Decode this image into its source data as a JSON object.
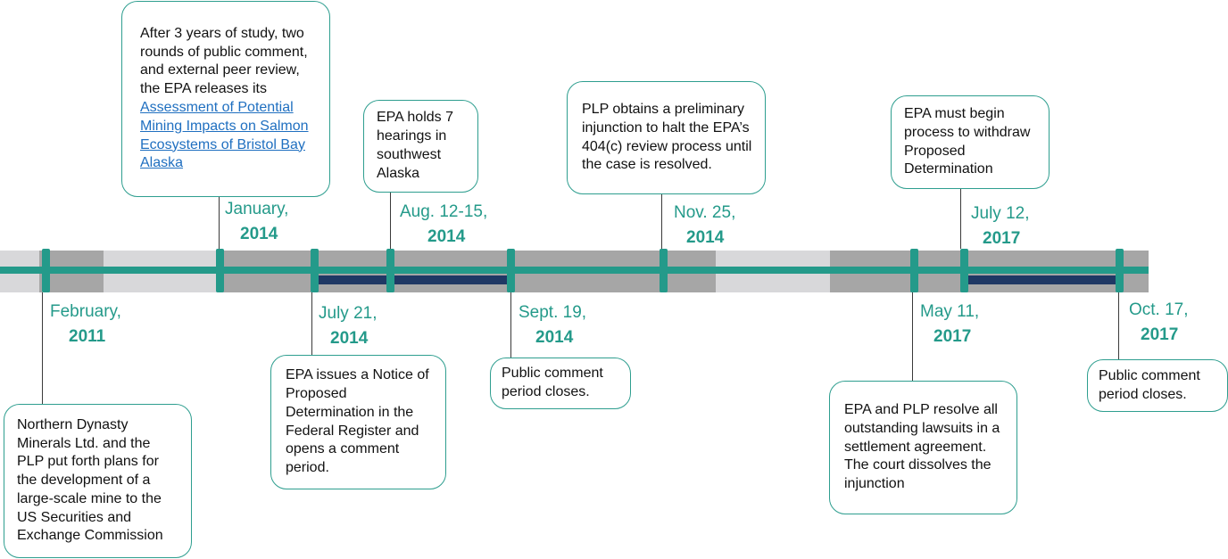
{
  "timeline": {
    "dates": {
      "feb2011": {
        "line1": "February,",
        "line2": "2011"
      },
      "jan2014": {
        "line1": "January,",
        "line2": "2014"
      },
      "jul2014": {
        "line1": "July 21,",
        "line2": "2014"
      },
      "aug2014": {
        "line1": "Aug. 12-15,",
        "line2": "2014"
      },
      "sep2014": {
        "line1": "Sept. 19,",
        "line2": "2014"
      },
      "nov2014": {
        "line1": "Nov. 25,",
        "line2": "2014"
      },
      "may2017": {
        "line1": "May 11,",
        "line2": "2017"
      },
      "jul2017": {
        "line1": "July 12,",
        "line2": "2017"
      },
      "oct2017": {
        "line1": "Oct. 17,",
        "line2": "2017"
      }
    },
    "events": {
      "feb2011": "Northern Dynasty Minerals Ltd. and the PLP put forth plans for the development of a large-scale mine to the US Securities and Exchange Commission",
      "jan2014_text": "After 3 years of study, two rounds of public comment, and external peer review, the EPA releases its ",
      "jan2014_link": "Assessment of Potential Mining Impacts on Salmon Ecosystems of Bristol Bay Alaska",
      "jul2014": "EPA issues a Notice of Proposed Determination in the Federal Register and opens a comment period.",
      "aug2014": "EPA holds 7 hearings in southwest Alaska",
      "sep2014": "Public comment period closes.",
      "nov2014": "PLP obtains a preliminary injunction to halt the EPA’s 404(c) review process until the case is resolved.",
      "may2017": "EPA and PLP resolve all outstanding lawsuits in a settlement agreement. The court dissolves the injunction",
      "jul2017": "EPA must begin process to withdraw Proposed Determination",
      "oct2017": "Public comment period closes."
    },
    "colors": {
      "accent": "#249a8a",
      "navy": "#1f3864",
      "band_light": "#d8d8da",
      "band_dark": "#a6a6a6",
      "link": "#1f6fc0"
    }
  }
}
